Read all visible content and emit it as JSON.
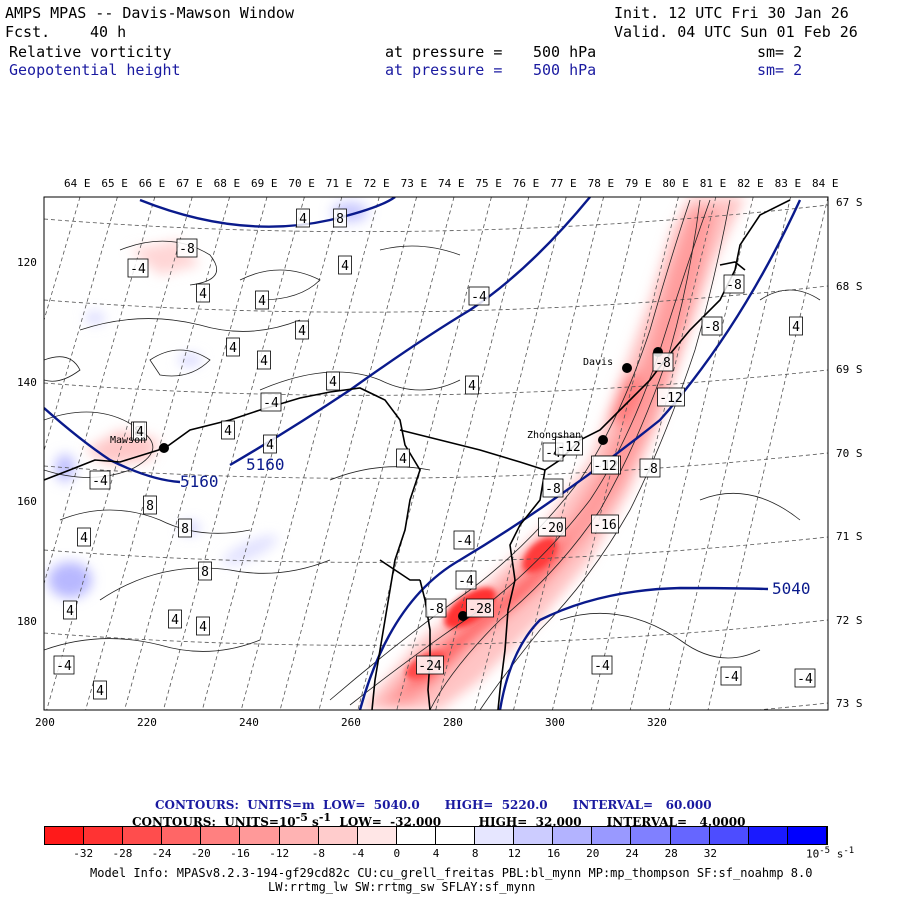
{
  "header": {
    "title": "AMPS MPAS -- Davis-Mawson Window",
    "fcst_label": "Fcst.",
    "fcst_value": "40 h",
    "init": "Init. 12 UTC Fri 30 Jan 26",
    "valid": "Valid. 04 UTC Sun 01 Feb 26",
    "field1": "Relative vorticity",
    "field1_pressure_label": "at pressure =",
    "field1_pressure": "500 hPa",
    "field1_sm": "sm= 2",
    "field2": "Geopotential height",
    "field2_pressure_label": "at pressure =",
    "field2_pressure": "500 hPa",
    "field2_sm": "sm= 2"
  },
  "map": {
    "lon_labels": [
      "64 E",
      "65 E",
      "66 E",
      "67 E",
      "68 E",
      "69 E",
      "70 E",
      "71 E",
      "72 E",
      "73 E",
      "74 E",
      "75 E",
      "76 E",
      "77 E",
      "78 E",
      "79 E",
      "80 E",
      "81 E",
      "82 E",
      "83 E",
      "84 E"
    ],
    "lat_labels": [
      "67 S",
      "68 S",
      "69 S",
      "70 S",
      "71 S",
      "72 S",
      "73 S"
    ],
    "x_ticks": [
      "200",
      "220",
      "240",
      "260",
      "280",
      "300",
      "320"
    ],
    "y_ticks": [
      "120",
      "140",
      "160",
      "180"
    ],
    "stations": [
      "Davis",
      "Zhongshan",
      "Mawson"
    ],
    "height_contour_labels": [
      "5160",
      "5160",
      "5040"
    ],
    "vort_labels": [
      "4",
      "8",
      "-8",
      "-4",
      "4",
      "4",
      "4",
      "-4",
      "4",
      "4",
      "4",
      "4",
      "4",
      "-4",
      "8",
      "4",
      "4",
      "-4",
      "4",
      "8",
      "4",
      "8",
      "8",
      "4",
      "4",
      "4",
      "-8",
      "4",
      "-8",
      "-12",
      "-12",
      "-12",
      "-8",
      "-4",
      "-12",
      "-8",
      "-20",
      "-16",
      "-4",
      "-4",
      "-8",
      "-28",
      "-24",
      "-4",
      "-4",
      "-4",
      "-4",
      "4",
      "4",
      "-8"
    ]
  },
  "contour_info": {
    "line1": "CONTOURS:  UNITS=m  LOW=  5040.0      HIGH=  5220.0      INTERVAL=   60.000",
    "line2_a": "CONTOURS:  UNITS=10",
    "line2_exp": "-5",
    "line2_b": " s",
    "line2_exp2": "-1",
    "line2_c": "  LOW=  -32.000         HIGH=  32.000      INTERVAL=   4.0000"
  },
  "colorbar": {
    "colors": [
      "#ff1a1a",
      "#ff3333",
      "#ff4d4d",
      "#ff6666",
      "#ff8080",
      "#ff9999",
      "#ffb3b3",
      "#ffcccc",
      "#ffe6e6",
      "#ffffff",
      "#ffffff",
      "#e6e6ff",
      "#ccccff",
      "#b3b3ff",
      "#9999ff",
      "#8080ff",
      "#6666ff",
      "#4d4dff",
      "#1a1aff",
      "#0000ff"
    ],
    "tick_labels": [
      "-32",
      "-28",
      "-24",
      "-20",
      "-16",
      "-12",
      "-8",
      "-4",
      "0",
      "4",
      "8",
      "12",
      "16",
      "20",
      "24",
      "28",
      "32"
    ],
    "units": "10",
    "units_exp": "-5",
    "units_b": " s",
    "units_exp2": "-1"
  },
  "footer": {
    "line1": "Model Info: MPASv8.2.3-194-gf29cd82c CU:cu_grell_freitas PBL:bl_mynn MP:mp_thompson SF:sf_noahmp 8.0",
    "line2": "LW:rrtmg_lw SW:rrtmg_sw SFLAY:sf_mynn"
  }
}
